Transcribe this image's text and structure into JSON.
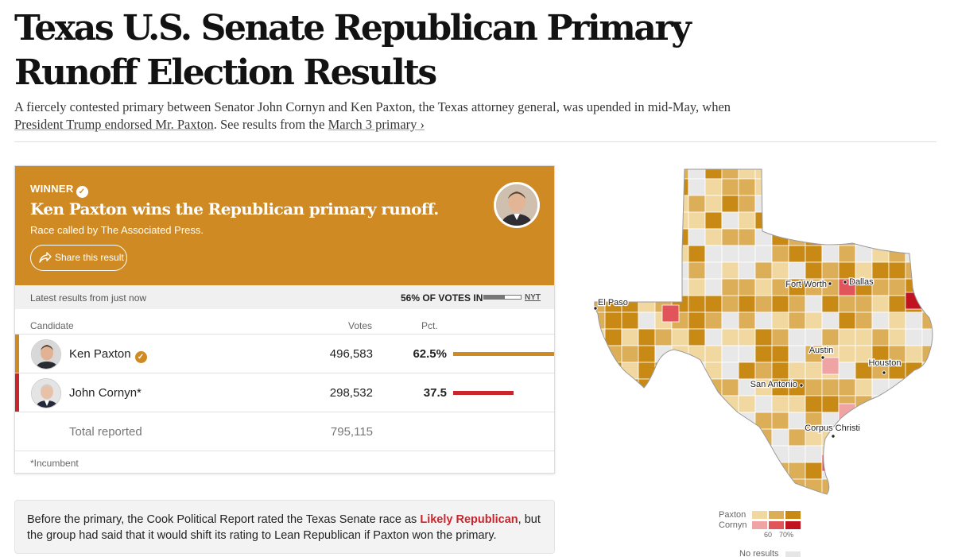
{
  "page": {
    "headline": "Texas U.S. Senate Republican Primary Runoff Election Results",
    "dek_part1": "A fiercely contested primary between Senator John Cornyn and Ken Paxton, the Texas attorney general, was upended in mid-May, when ",
    "dek_link1": "President Trump endorsed Mr. Paxton",
    "dek_part2": ". See results from the ",
    "dek_link2": "March 3 primary ›"
  },
  "winner": {
    "label": "WINNER",
    "title": "Ken Paxton wins the Republican primary runoff.",
    "called_by": "Race called by The Associated Press.",
    "share_label": "Share this result"
  },
  "status": {
    "latest": "Latest results from just now",
    "votes_in": "56% OF VOTES IN",
    "votes_in_fraction": 0.56,
    "source": "NYT"
  },
  "table": {
    "col_candidate": "Candidate",
    "col_votes": "Votes",
    "col_pct": "Pct.",
    "candidates": [
      {
        "name": "Ken Paxton",
        "votes": "496,583",
        "pct": "62.5%",
        "pct_value": 62.5,
        "color": "#cf8a23",
        "winner": true
      },
      {
        "name": "John Cornyn*",
        "votes": "298,532",
        "pct": "37.5",
        "pct_value": 37.5,
        "color": "#c9252c",
        "winner": false
      }
    ],
    "total_label": "Total reported",
    "total_votes": "795,115",
    "footnote": "*Incumbent"
  },
  "note": {
    "part1": "Before the primary, the Cook Political Report rated the Texas Senate race as ",
    "rating": "Likely Republican",
    "part2": ", but the group had said that it would shift its rating to Lean Republican if Paxton won the primary."
  },
  "map": {
    "cities": [
      "El Paso",
      "Fort Worth",
      "Dallas",
      "Austin",
      "Houston",
      "San Antonio",
      "Corpus Christi"
    ]
  },
  "legend": {
    "paxton": "Paxton",
    "cornyn": "Cornyn",
    "tick_60": "60",
    "tick_70": "70%",
    "no_results": "No results",
    "paxton_colors": [
      "#f1d8a0",
      "#dcae57",
      "#c88a15"
    ],
    "cornyn_colors": [
      "#f0a3a3",
      "#e0545a",
      "#c1121f"
    ]
  }
}
